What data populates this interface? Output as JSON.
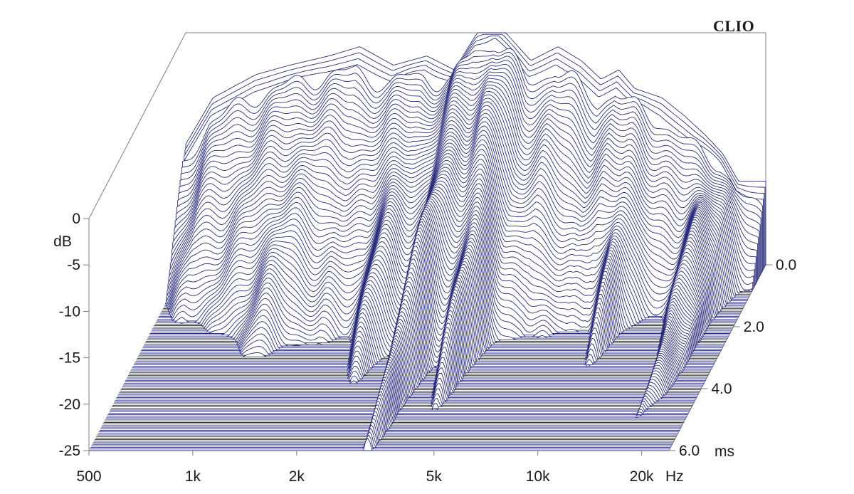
{
  "brand": "CLIO",
  "colors": {
    "curve": "#2b2d7c",
    "frame": "#7f7f7f",
    "background": "#ffffff"
  },
  "chart_data": {
    "type": "waterfall",
    "title": "",
    "x_axis": {
      "unit": "Hz",
      "scale": "log",
      "range": [
        500,
        24000
      ],
      "ticks": [
        500,
        1000,
        2000,
        5000,
        10000,
        20000
      ],
      "tick_labels": [
        "500",
        "1k",
        "2k",
        "5k",
        "10k",
        "20k"
      ]
    },
    "y_axis": {
      "label": "dB",
      "range": [
        -25,
        0
      ],
      "ticks": [
        0,
        -5,
        -10,
        -15,
        -20,
        -25
      ],
      "tick_labels": [
        "0",
        "-5",
        "-10",
        "-15",
        "-20",
        "-25"
      ]
    },
    "z_axis": {
      "unit": "ms",
      "range": [
        0,
        6.0
      ],
      "ticks": [
        0,
        2.0,
        4.0,
        6.0
      ],
      "tick_labels": [
        "0.0",
        "2.0",
        "4.0",
        "6.0"
      ]
    },
    "initial_response": {
      "freq_hz": [
        500,
        600,
        800,
        1000,
        1300,
        1600,
        2000,
        2500,
        3000,
        3500,
        4000,
        5000,
        6000,
        7000,
        8000,
        9000,
        10000,
        12000,
        14000,
        16000,
        18000,
        20000
      ],
      "db": [
        -12,
        -7,
        -4.5,
        -3.5,
        -2.5,
        -1.5,
        -3.5,
        -2.5,
        -4,
        0,
        1,
        -3,
        -1.5,
        -3,
        -5,
        -4,
        -6,
        -7,
        -9,
        -11,
        -13,
        -16
      ]
    }
  }
}
